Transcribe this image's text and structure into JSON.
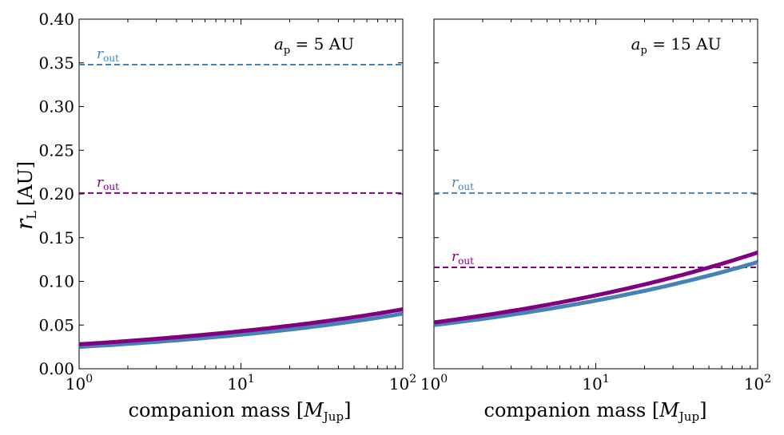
{
  "chart_data": {
    "type": "line",
    "ylabel": "r",
    "ylabel_sub": "L",
    "ylabel_unit": "[AU]",
    "xlabel": "companion mass [",
    "xlabel_sym": "M",
    "xlabel_sub": "Jup",
    "xlabel_close": "]",
    "x_scale": "log",
    "xlim": [
      1,
      100
    ],
    "ylim": [
      0.0,
      0.4
    ],
    "x_ticks": [
      {
        "base": "10",
        "exp": "0"
      },
      {
        "base": "10",
        "exp": "1"
      },
      {
        "base": "10",
        "exp": "2"
      }
    ],
    "y_ticks": [
      "0.00",
      "0.05",
      "0.10",
      "0.15",
      "0.20",
      "0.25",
      "0.30",
      "0.35",
      "0.40"
    ],
    "colors": {
      "blue": "#4682b4",
      "purple": "#800080"
    },
    "panels": [
      {
        "annotation": {
          "sym": "a",
          "sub": "p",
          "rest": " = 5 AU"
        },
        "hlines": [
          {
            "y": 0.348,
            "color": "#4682b4",
            "label": "r",
            "label_sub": "out"
          },
          {
            "y": 0.201,
            "color": "#800080",
            "label": "r",
            "label_sub": "out"
          }
        ],
        "series": [
          {
            "name": "blue",
            "color": "#4682b4",
            "x": [
              1,
              10,
              100
            ],
            "y": [
              0.025,
              0.039,
              0.063
            ]
          },
          {
            "name": "purple",
            "color": "#800080",
            "x": [
              1,
              10,
              100
            ],
            "y": [
              0.028,
              0.043,
              0.068
            ]
          }
        ]
      },
      {
        "annotation": {
          "sym": "a",
          "sub": "p",
          "rest": " = 15 AU"
        },
        "hlines": [
          {
            "y": 0.201,
            "color": "#4682b4",
            "label": "r",
            "label_sub": "out"
          },
          {
            "y": 0.116,
            "color": "#800080",
            "label": "r",
            "label_sub": "out"
          }
        ],
        "series": [
          {
            "name": "blue",
            "color": "#4682b4",
            "x": [
              1,
              10,
              100
            ],
            "y": [
              0.05,
              0.078,
              0.122
            ]
          },
          {
            "name": "purple",
            "color": "#800080",
            "x": [
              1,
              10,
              100
            ],
            "y": [
              0.053,
              0.084,
              0.133
            ]
          }
        ]
      }
    ]
  }
}
